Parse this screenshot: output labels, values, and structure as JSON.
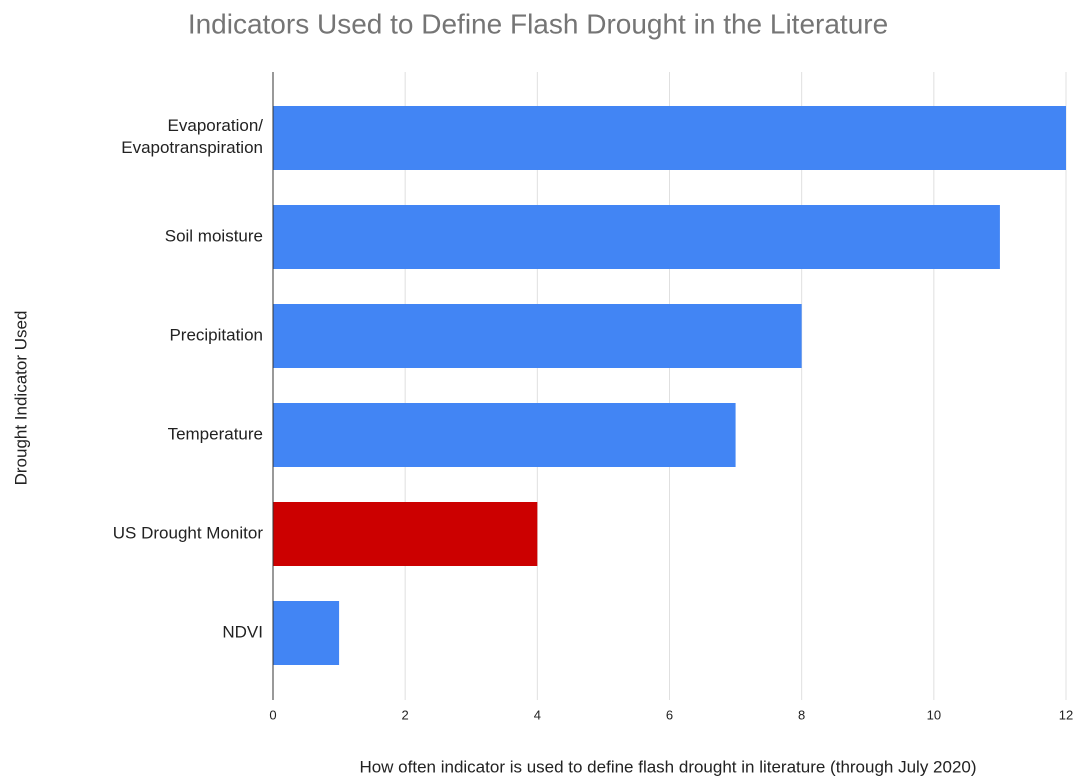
{
  "chart_data": {
    "type": "hbar",
    "title": "Indicators Used to Define Flash Drought in the Literature",
    "x_label": "How often indicator is used to define flash drought in literature (through July 2020)",
    "y_label": "Drought Indicator Used",
    "categories": [
      "Evaporation/\nEvapotranspiration",
      "Soil moisture",
      "Precipitation",
      "Temperature",
      "US Drought Monitor",
      "NDVI"
    ],
    "values": [
      12,
      11,
      8,
      7,
      4,
      1
    ],
    "colors": [
      "#4285f4",
      "#4285f4",
      "#4285f4",
      "#4285f4",
      "#cc0000",
      "#4285f4"
    ],
    "xlim": [
      0,
      12
    ],
    "xticks": [
      0,
      2,
      4,
      6,
      8,
      10,
      12
    ],
    "grid": true
  }
}
